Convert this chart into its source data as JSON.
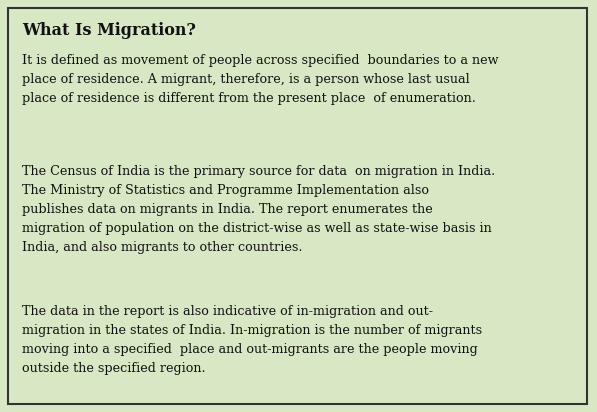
{
  "title": "What Is Migration?",
  "background_color": "#d9e8c4",
  "border_color": "#333333",
  "text_color": "#111111",
  "title_fontsize": 11.5,
  "body_fontsize": 9.2,
  "paragraph1": "It is defined as movement of people across specified  boundaries to a new\nplace of residence. A migrant, therefore, is a person whose last usual\nplace of residence is different from the present place  of enumeration.",
  "paragraph2": "The Census of India is the primary source for data  on migration in India.\nThe Ministry of Statistics and Programme Implementation also\npublishes data on migrants in India. The report enumerates the\nmigration of population on the district-wise as well as state-wise basis in\nIndia, and also migrants to other countries.",
  "paragraph3": "The data in the report is also indicative of in-migration and out-\nmigration in the states of India. In-migration is the number of migrants\nmoving into a specified  place and out-migrants are the people moving\noutside the specified region."
}
